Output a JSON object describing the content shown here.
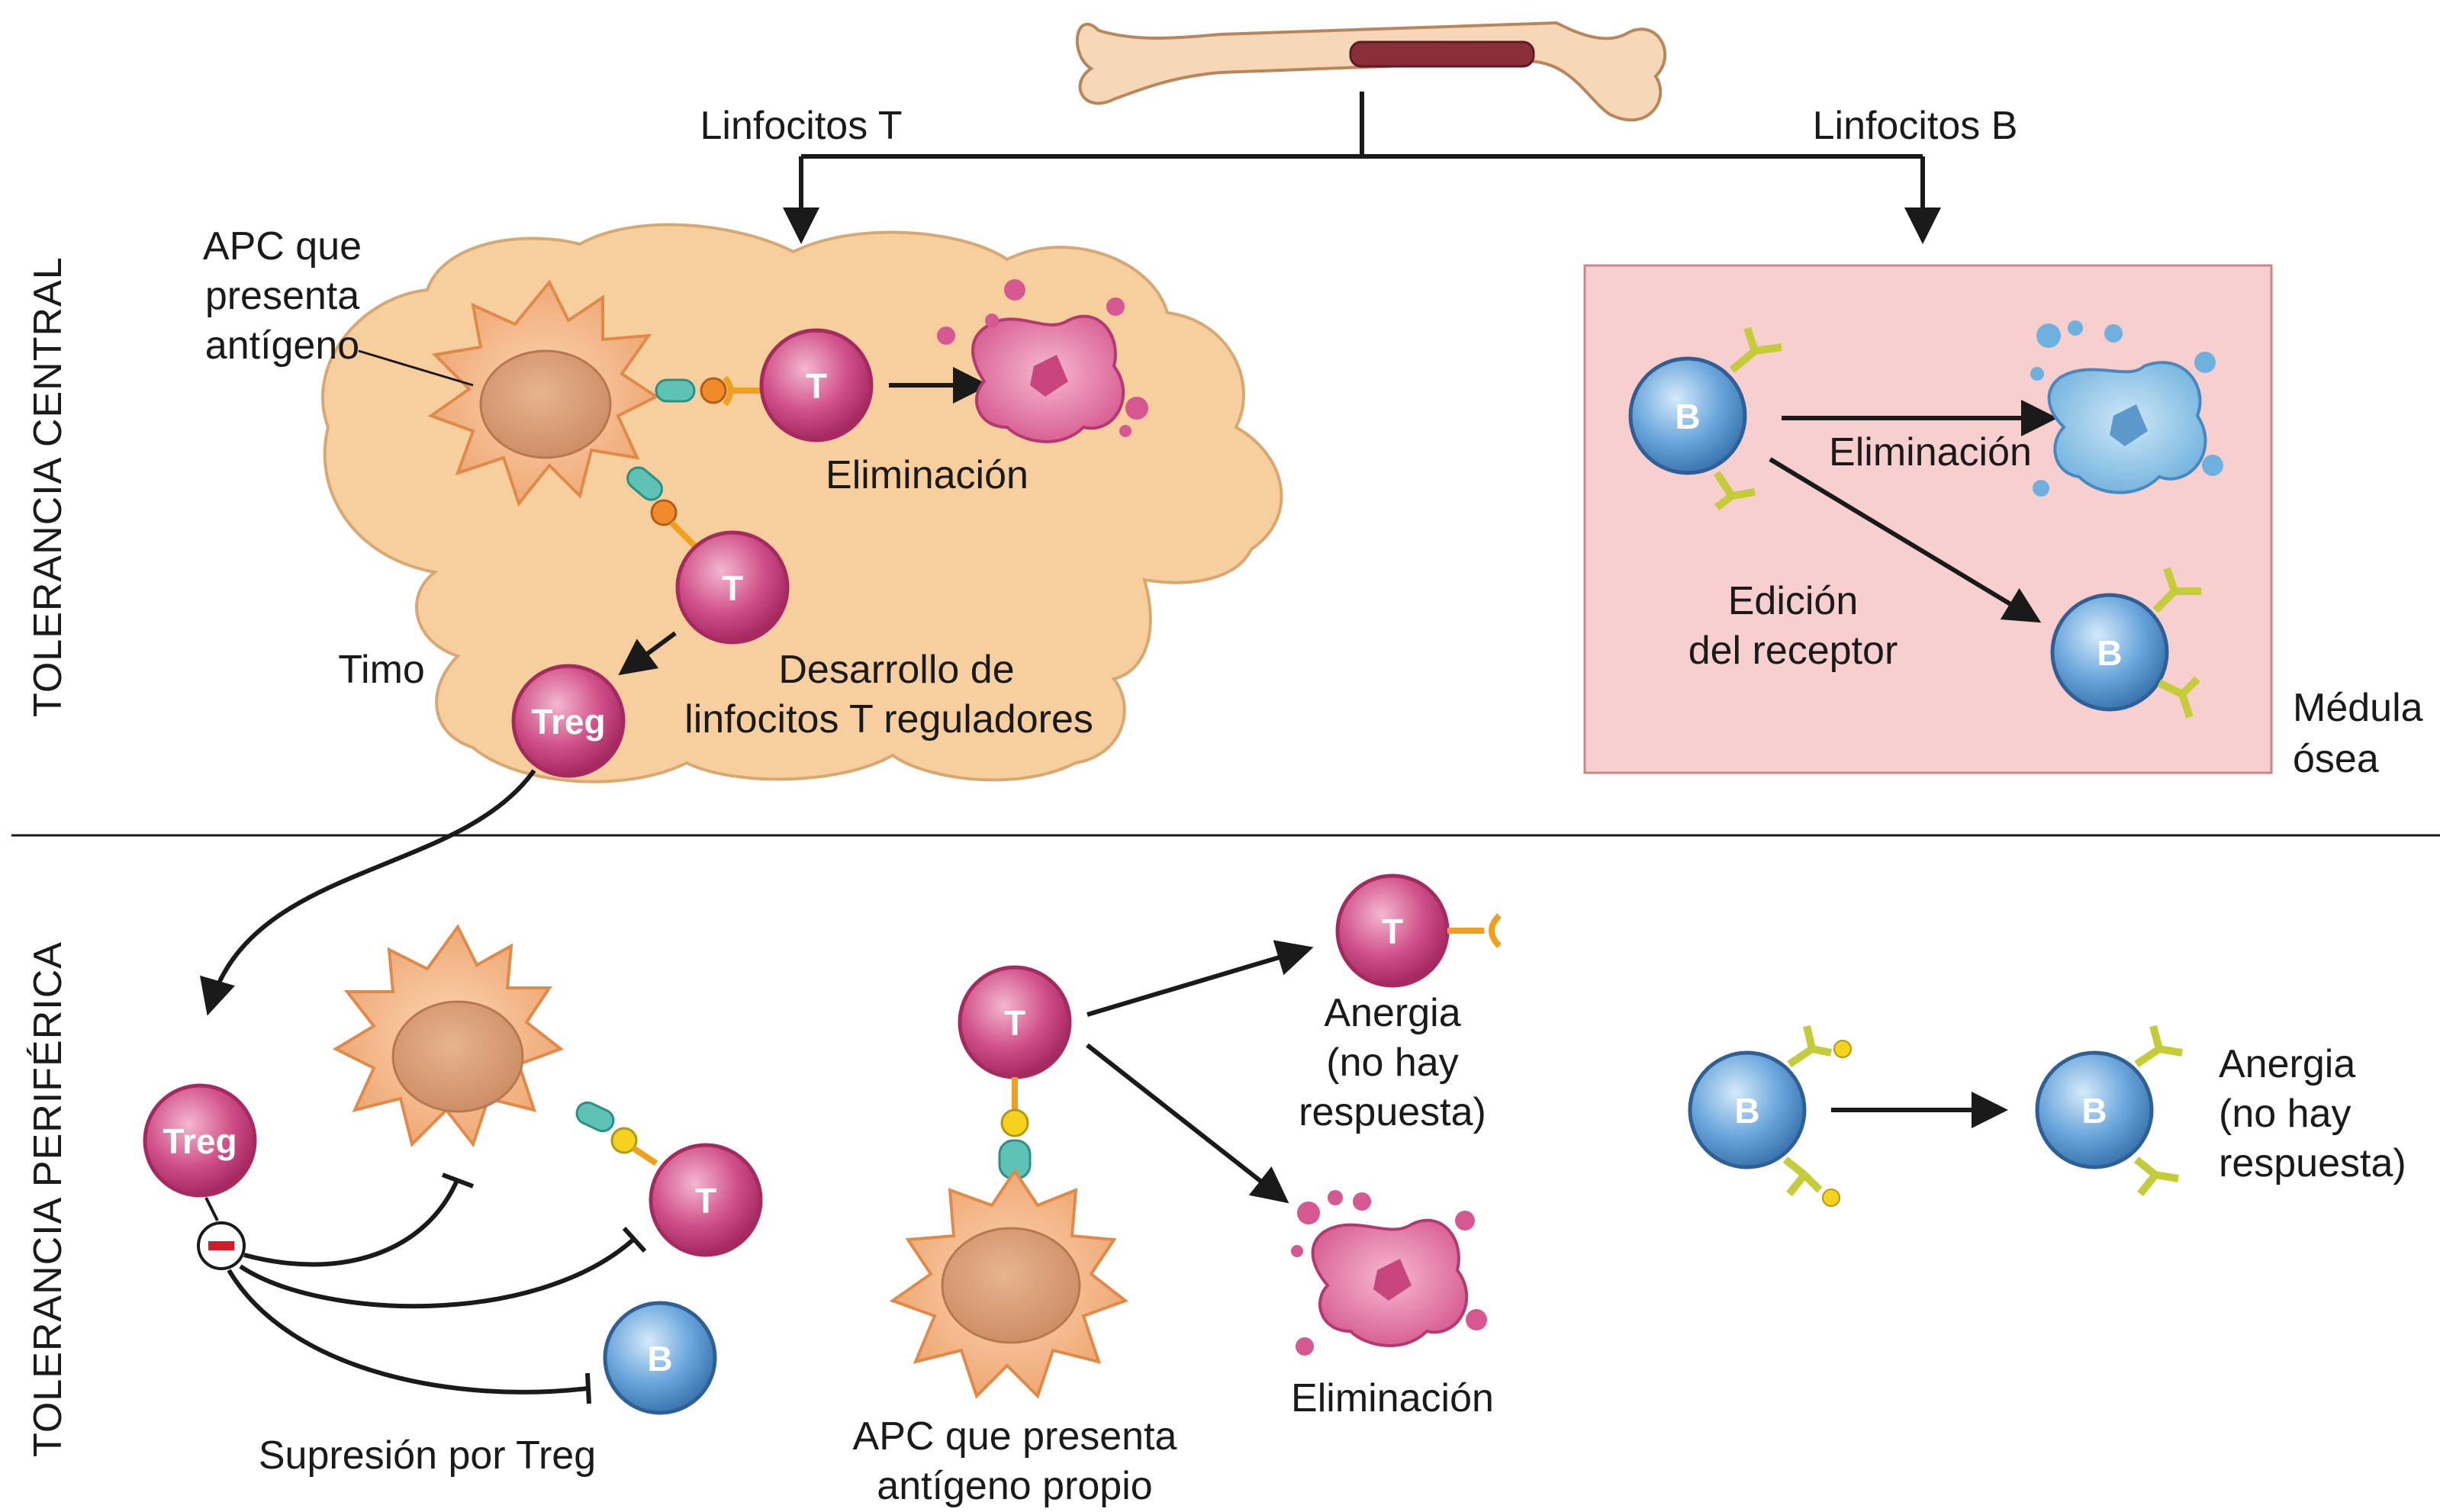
{
  "left_labels": {
    "central": "TOLERANCIA CENTRAL",
    "peripheral": "TOLERANCIA PERIFÉRICA"
  },
  "top": {
    "t_lymphocytes": "Linfocitos T",
    "b_lymphocytes": "Linfocitos B"
  },
  "thymus": {
    "apc_label": [
      "APC que",
      "presenta",
      "antígeno"
    ],
    "thymus_label": "Timo",
    "t_cell_letter": "T",
    "elimination": "Eliminación",
    "treg_letter": "Treg",
    "treg_development": [
      "Desarrollo de",
      "linfocitos T reguladores"
    ]
  },
  "marrow": {
    "b_letter": "B",
    "elimination": "Eliminación",
    "receptor_editing": [
      "Edición",
      "del receptor"
    ],
    "label": [
      "Médula",
      "ósea"
    ]
  },
  "peripheral": {
    "treg_letter": "Treg",
    "t_letter": "T",
    "b_letter": "B",
    "suppression": "Supresión por Treg",
    "self_apc": [
      "APC que presenta",
      "antígeno propio"
    ],
    "anergy": [
      "Anergia",
      "(no hay",
      "respuesta)"
    ],
    "elimination": "Eliminación",
    "b_anergy": [
      "Anergia",
      "(no hay",
      "respuesta)"
    ]
  },
  "colors": {
    "t_cell": "#c4336e",
    "b_cell": "#4f8fc8",
    "apc": "#f2a468",
    "thymus": "#f7cf9e",
    "marrow_bg": "#f7cfcf",
    "receptor_t": "#f0a020",
    "receptor_b": "#c5cc3a",
    "mhc": "#5ec2b4"
  }
}
